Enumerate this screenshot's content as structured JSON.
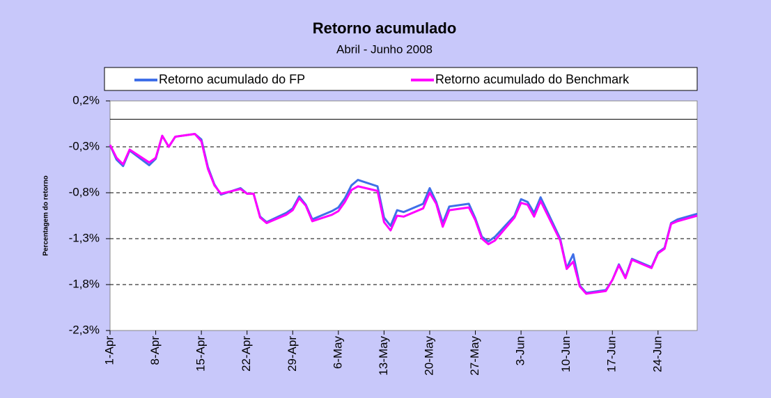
{
  "chart_data": {
    "type": "line",
    "title": "Retorno acumulado",
    "subtitle": "Abril - Junho 2008",
    "y_label": "Percentagem do retorno",
    "x": [
      "1-Apr",
      "2-Apr",
      "3-Apr",
      "4-Apr",
      "7-Apr",
      "8-Apr",
      "9-Apr",
      "10-Apr",
      "11-Apr",
      "14-Apr",
      "15-Apr",
      "16-Apr",
      "17-Apr",
      "18-Apr",
      "21-Apr",
      "22-Apr",
      "23-Apr",
      "24-Apr",
      "25-Apr",
      "28-Apr",
      "29-Apr",
      "30-Apr",
      "1-May",
      "2-May",
      "5-May",
      "6-May",
      "7-May",
      "8-May",
      "9-May",
      "12-May",
      "13-May",
      "14-May",
      "15-May",
      "16-May",
      "19-May",
      "20-May",
      "21-May",
      "22-May",
      "23-May",
      "26-May",
      "27-May",
      "28-May",
      "29-May",
      "30-May",
      "2-Jun",
      "3-Jun",
      "4-Jun",
      "5-Jun",
      "6-Jun",
      "9-Jun",
      "10-Jun",
      "11-Jun",
      "12-Jun",
      "13-Jun",
      "16-Jun",
      "17-Jun",
      "18-Jun",
      "19-Jun",
      "20-Jun",
      "23-Jun",
      "24-Jun",
      "25-Jun",
      "26-Jun",
      "27-Jun",
      "30-Jun"
    ],
    "series": [
      {
        "name": "Retorno acumulado do FP",
        "color": "#3f6fe8",
        "values": [
          -0.28,
          -0.44,
          -0.51,
          -0.34,
          -0.5,
          -0.43,
          -0.18,
          -0.3,
          -0.19,
          -0.16,
          -0.22,
          -0.52,
          -0.71,
          -0.82,
          -0.75,
          -0.81,
          -0.81,
          -1.06,
          -1.12,
          -1.02,
          -0.97,
          -0.84,
          -0.93,
          -1.09,
          -1.0,
          -0.96,
          -0.86,
          -0.72,
          -0.66,
          -0.73,
          -1.07,
          -1.16,
          -0.99,
          -1.01,
          -0.92,
          -0.75,
          -0.9,
          -1.13,
          -0.95,
          -0.92,
          -1.08,
          -1.28,
          -1.33,
          -1.28,
          -1.05,
          -0.87,
          -0.9,
          -1.02,
          -0.85,
          -1.3,
          -1.62,
          -1.47,
          -1.81,
          -1.89,
          -1.86,
          -1.75,
          -1.58,
          -1.72,
          -1.52,
          -1.61,
          -1.45,
          -1.4,
          -1.13,
          -1.09,
          -1.03
        ]
      },
      {
        "name": "Retorno acumulado do Benchmark",
        "color": "#ff00ff",
        "values": [
          -0.28,
          -0.42,
          -0.49,
          -0.33,
          -0.47,
          -0.42,
          -0.18,
          -0.3,
          -0.19,
          -0.16,
          -0.24,
          -0.54,
          -0.72,
          -0.81,
          -0.76,
          -0.81,
          -0.81,
          -1.07,
          -1.13,
          -1.04,
          -0.99,
          -0.86,
          -0.94,
          -1.11,
          -1.04,
          -1.0,
          -0.9,
          -0.77,
          -0.73,
          -0.78,
          -1.12,
          -1.21,
          -1.05,
          -1.06,
          -0.97,
          -0.8,
          -0.92,
          -1.17,
          -0.99,
          -0.96,
          -1.1,
          -1.3,
          -1.36,
          -1.32,
          -1.07,
          -0.91,
          -0.93,
          -1.06,
          -0.89,
          -1.32,
          -1.63,
          -1.55,
          -1.82,
          -1.9,
          -1.87,
          -1.75,
          -1.59,
          -1.73,
          -1.53,
          -1.62,
          -1.46,
          -1.41,
          -1.14,
          -1.11,
          -1.05
        ]
      }
    ],
    "xlim": [
      "1-Apr",
      "30-Jun"
    ],
    "xticks": [
      "1-Apr",
      "8-Apr",
      "15-Apr",
      "22-Apr",
      "29-Apr",
      "6-May",
      "13-May",
      "20-May",
      "27-May",
      "3-Jun",
      "10-Jun",
      "17-Jun",
      "24-Jun"
    ],
    "ylim": [
      -2.3,
      0.2
    ],
    "yticks": [
      {
        "value": -2.3,
        "label": "-2,3%"
      },
      {
        "value": -1.8,
        "label": "-1,8%"
      },
      {
        "value": -1.3,
        "label": "-1,3%"
      },
      {
        "value": -0.8,
        "label": "-0,8%"
      },
      {
        "value": -0.3,
        "label": "-0,3%"
      },
      {
        "value": 0.2,
        "label": "0,2%"
      }
    ],
    "grid": true,
    "legend": "top"
  }
}
